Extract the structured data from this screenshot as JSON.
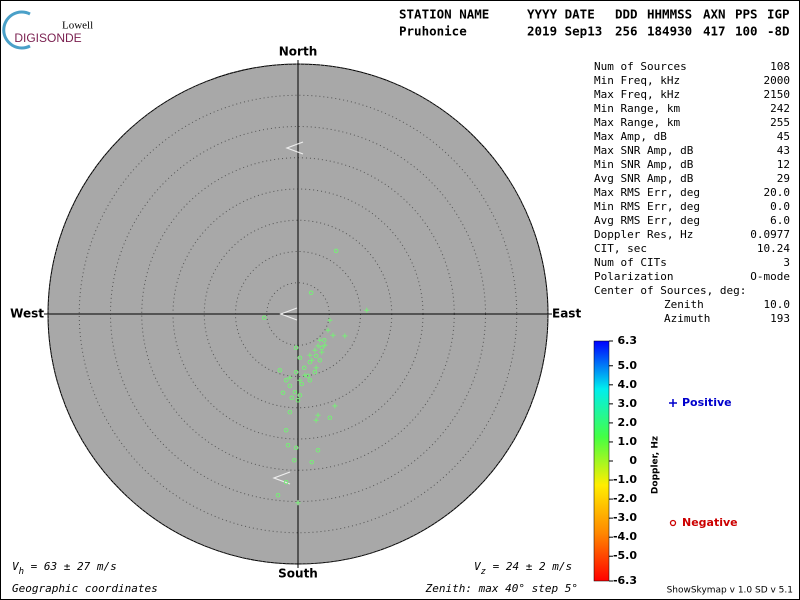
{
  "logo": {
    "top": "Lowell",
    "bottom": "DIGISONDE"
  },
  "header": {
    "columns": [
      "STATION NAME",
      "YYYY DATE",
      "DDD",
      "HHMMSS",
      "AXN",
      "PPS",
      "IGP"
    ],
    "values": [
      "Pruhonice",
      "2019 Sep13",
      "256",
      "184930",
      "417",
      "100",
      "-8D"
    ]
  },
  "stats": {
    "rows": [
      [
        "Num of Sources",
        "108"
      ],
      [
        "Min Freq, kHz",
        "2000"
      ],
      [
        "Max Freq, kHz",
        "2150"
      ],
      [
        "Min Range, km",
        "242"
      ],
      [
        "Max Range, km",
        "255"
      ],
      [
        "Max Amp, dB",
        "45"
      ],
      [
        "Max SNR Amp, dB",
        "43"
      ],
      [
        "Min SNR Amp, dB",
        "12"
      ],
      [
        "Avg SNR Amp, dB",
        "29"
      ],
      [
        "Max RMS Err, deg",
        "20.0"
      ],
      [
        "Min RMS Err, deg",
        "0.0"
      ],
      [
        "Avg RMS Err, deg",
        "6.0"
      ],
      [
        "Doppler Res, Hz",
        "0.0977"
      ],
      [
        "CIT, sec",
        "10.24"
      ],
      [
        "Num of CITs",
        "3"
      ],
      [
        "Polarization",
        "O-mode"
      ],
      [
        "Center of Sources, deg:",
        ""
      ]
    ],
    "center": [
      [
        "Zenith",
        "10.0"
      ],
      [
        "Azimuth",
        "193"
      ]
    ]
  },
  "footer": {
    "vh": {
      "symbol": "V",
      "subscript": "h",
      "text": " = 63 ± 27 m/s"
    },
    "vz": {
      "symbol": "V",
      "subscript": "z",
      "text": " = 24 ± 2 m/s"
    },
    "coordinates": "Geographic coordinates",
    "zenith": "Zenith: max 40°  step 5°",
    "version": "ShowSkymap v 1.0  SD v 5.1"
  },
  "chart_data": [
    {
      "type": "skymap",
      "directions": {
        "north": "North",
        "south": "South",
        "east": "East",
        "west": "West"
      },
      "xlim": [
        -40,
        40
      ],
      "ylim": [
        -40,
        40
      ],
      "rticks": [
        5,
        10,
        15,
        20,
        25,
        30,
        35,
        40
      ],
      "background": "#a8a8a8",
      "point_color": "#77ee77",
      "series": [
        {
          "name": "Positive",
          "marker": "+",
          "color": "#0000cc",
          "x": [
            11.0,
            5.1,
            4.8,
            5.6,
            7.5,
            3.5,
            3.2,
            3.8,
            2.2,
            2.9,
            1.1,
            0.3,
            -1.3,
            5.9,
            3.2,
            2.9,
            0,
            1.9,
            4.3,
            2.7
          ],
          "y": [
            0.6,
            -1.0,
            -2.6,
            -3.4,
            -3.5,
            -4.2,
            -5.1,
            -6.1,
            -7.4,
            -8.6,
            -9.8,
            -10.6,
            -10.2,
            -14.7,
            -16.2,
            -17.0,
            -30.2,
            -6.6,
            -5.0,
            -5.8
          ]
        },
        {
          "name": "Negative",
          "marker": "o",
          "color": "#cc0000",
          "x": [
            6.1,
            2.1,
            -5.4,
            -0.3,
            0.3,
            1.9,
            1.0,
            -2.9,
            -1.9,
            -1.3,
            -0.5,
            0.3,
            1.9,
            2.7,
            3.5,
            3.8,
            0,
            -2.4,
            -1.3,
            -1.9,
            -1.6,
            -0.3,
            3.2,
            2.2,
            -0.6,
            -1.9,
            -3.2,
            5.1,
            1.6,
            0.6,
            -1.0,
            2.9,
            4.2,
            -0.3
          ],
          "y": [
            10.1,
            3.4,
            -0.6,
            -5.4,
            -7.0,
            -7.7,
            -8.6,
            -9.0,
            -10.6,
            -11.5,
            -12.5,
            -13.0,
            -10.6,
            -9.3,
            -7.4,
            -5.4,
            -13.8,
            -12.6,
            -15.7,
            -18.6,
            -21.0,
            -21.4,
            -21.8,
            -23.7,
            -23.4,
            -26.9,
            -29.0,
            -16.6,
            -9.9,
            -11.2,
            -13.4,
            -6.7,
            -4.2,
            -9.3
          ]
        }
      ]
    },
    {
      "type": "colorbar",
      "label": "Doppler, Hz",
      "ylim": [
        -6.3,
        6.3
      ],
      "yticks": [
        6.3,
        {
          "value": 5,
          "label": "5.0"
        },
        {
          "value": 4,
          "label": "4.0"
        },
        {
          "value": 3,
          "label": "3.0"
        },
        {
          "value": 2,
          "label": "2.0"
        },
        {
          "value": 1,
          "label": "1.0"
        },
        0,
        {
          "value": -1,
          "label": "-1.0"
        },
        {
          "value": -2,
          "label": "-2.0"
        },
        {
          "value": -3,
          "label": "-3.0"
        },
        {
          "value": -4,
          "label": "-4.0"
        },
        {
          "value": -5,
          "label": "-5.0"
        },
        -6.3
      ],
      "colorscale": [
        "#ff0000",
        "#ff8800",
        "#ffee00",
        "#44ff44",
        "#00eeee",
        "#0000ff"
      ]
    }
  ]
}
